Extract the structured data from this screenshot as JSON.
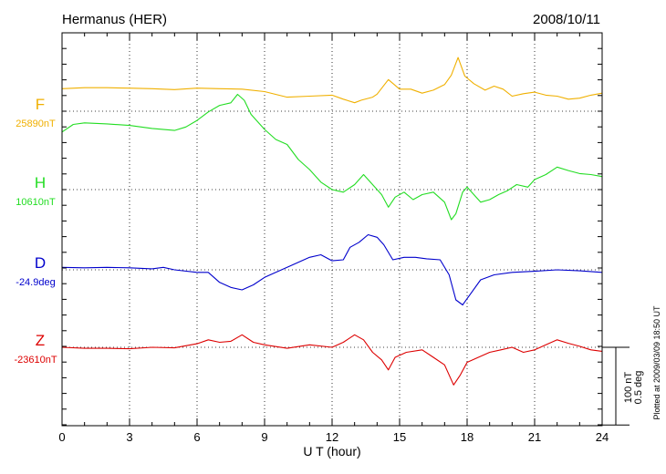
{
  "chart_data": {
    "type": "line",
    "title": "Hermanus (HER)",
    "date": "2008/10/11",
    "xlabel": "U T (hour)",
    "xlim": [
      0,
      24
    ],
    "xticks": [
      "0",
      "3",
      "6",
      "9",
      "12",
      "15",
      "18",
      "21",
      "24"
    ],
    "scale_bar": {
      "nT_label": "100 nT",
      "deg_label": "0.5 deg",
      "nT": 100
    },
    "footer": "Plotted at 2009/03/09 18:50 UT",
    "colors": {
      "F": "#f0b000",
      "H": "#22dd22",
      "D": "#0000cc",
      "Z": "#dd0000"
    },
    "series": [
      {
        "name": "F",
        "baseline_label": "25890nT",
        "color": "#f0b000",
        "points": [
          [
            0,
            45
          ],
          [
            1,
            47
          ],
          [
            2,
            47
          ],
          [
            3,
            46
          ],
          [
            4,
            45
          ],
          [
            5,
            43
          ],
          [
            6,
            46
          ],
          [
            7,
            45
          ],
          [
            8,
            44
          ],
          [
            9,
            39
          ],
          [
            10,
            28
          ],
          [
            11,
            30
          ],
          [
            12,
            32
          ],
          [
            12.5,
            24
          ],
          [
            13,
            17
          ],
          [
            13.3,
            22
          ],
          [
            13.8,
            28
          ],
          [
            14,
            34
          ],
          [
            14.5,
            63
          ],
          [
            15,
            44
          ],
          [
            15.5,
            44
          ],
          [
            16,
            36
          ],
          [
            16.5,
            42
          ],
          [
            17,
            53
          ],
          [
            17.3,
            72
          ],
          [
            17.6,
            107
          ],
          [
            17.9,
            70
          ],
          [
            18.3,
            55
          ],
          [
            18.8,
            42
          ],
          [
            19.2,
            50
          ],
          [
            19.6,
            44
          ],
          [
            20,
            30
          ],
          [
            20.5,
            35
          ],
          [
            21,
            38
          ],
          [
            21.5,
            32
          ],
          [
            22,
            30
          ],
          [
            22.5,
            24
          ],
          [
            23,
            26
          ],
          [
            23.5,
            32
          ],
          [
            24,
            36
          ]
        ]
      },
      {
        "name": "H",
        "baseline_label": "10610nT",
        "color": "#22dd22",
        "points": [
          [
            0,
            115
          ],
          [
            0.5,
            130
          ],
          [
            1,
            133
          ],
          [
            2,
            131
          ],
          [
            3,
            128
          ],
          [
            4,
            122
          ],
          [
            5,
            118
          ],
          [
            5.5,
            125
          ],
          [
            6,
            138
          ],
          [
            6.5,
            155
          ],
          [
            7,
            168
          ],
          [
            7.5,
            173
          ],
          [
            7.8,
            190
          ],
          [
            8.1,
            178
          ],
          [
            8.4,
            150
          ],
          [
            9,
            120
          ],
          [
            9.5,
            100
          ],
          [
            10,
            90
          ],
          [
            10.5,
            60
          ],
          [
            11,
            40
          ],
          [
            11.5,
            15
          ],
          [
            12,
            0
          ],
          [
            12.5,
            -5
          ],
          [
            13,
            10
          ],
          [
            13.4,
            30
          ],
          [
            13.8,
            10
          ],
          [
            14.2,
            -10
          ],
          [
            14.5,
            -35
          ],
          [
            14.8,
            -15
          ],
          [
            15.2,
            -5
          ],
          [
            15.6,
            -20
          ],
          [
            16,
            -10
          ],
          [
            16.5,
            -5
          ],
          [
            17,
            -25
          ],
          [
            17.3,
            -60
          ],
          [
            17.5,
            -48
          ],
          [
            17.8,
            -5
          ],
          [
            18,
            5
          ],
          [
            18.3,
            -10
          ],
          [
            18.6,
            -25
          ],
          [
            19,
            -20
          ],
          [
            19.4,
            -10
          ],
          [
            19.8,
            -2
          ],
          [
            20.2,
            10
          ],
          [
            20.7,
            5
          ],
          [
            21,
            20
          ],
          [
            21.5,
            30
          ],
          [
            22,
            45
          ],
          [
            22.5,
            38
          ],
          [
            23,
            32
          ],
          [
            23.5,
            30
          ],
          [
            24,
            26
          ]
        ]
      },
      {
        "name": "D",
        "baseline_label": "-24.9deg",
        "color": "#0000cc",
        "points": [
          [
            0,
            5
          ],
          [
            1,
            4
          ],
          [
            2,
            5
          ],
          [
            3,
            4
          ],
          [
            4,
            2
          ],
          [
            4.5,
            5
          ],
          [
            5,
            0
          ],
          [
            6,
            -5
          ],
          [
            6.5,
            -5
          ],
          [
            7,
            -25
          ],
          [
            7.5,
            -35
          ],
          [
            8,
            -40
          ],
          [
            8.5,
            -30
          ],
          [
            9,
            -15
          ],
          [
            9.5,
            -5
          ],
          [
            10,
            5
          ],
          [
            10.5,
            15
          ],
          [
            11,
            25
          ],
          [
            11.5,
            30
          ],
          [
            12,
            18
          ],
          [
            12.5,
            20
          ],
          [
            12.8,
            45
          ],
          [
            13.2,
            55
          ],
          [
            13.6,
            70
          ],
          [
            14,
            65
          ],
          [
            14.3,
            50
          ],
          [
            14.7,
            20
          ],
          [
            15.2,
            25
          ],
          [
            15.7,
            25
          ],
          [
            16.2,
            22
          ],
          [
            16.8,
            20
          ],
          [
            17.2,
            -10
          ],
          [
            17.5,
            -60
          ],
          [
            17.8,
            -70
          ],
          [
            18.2,
            -45
          ],
          [
            18.6,
            -20
          ],
          [
            19.2,
            -10
          ],
          [
            20,
            -5
          ],
          [
            21,
            -3
          ],
          [
            22,
            0
          ],
          [
            23,
            -2
          ],
          [
            24,
            -5
          ]
        ]
      },
      {
        "name": "Z",
        "baseline_label": "-23610nT",
        "color": "#dd0000",
        "points": [
          [
            0,
            0
          ],
          [
            1,
            -2
          ],
          [
            2,
            -2
          ],
          [
            3,
            -3
          ],
          [
            4,
            0
          ],
          [
            5,
            -1
          ],
          [
            6,
            7
          ],
          [
            6.5,
            15
          ],
          [
            7,
            10
          ],
          [
            7.5,
            12
          ],
          [
            8,
            25
          ],
          [
            8.5,
            10
          ],
          [
            9,
            5
          ],
          [
            10,
            -2
          ],
          [
            11,
            5
          ],
          [
            12,
            0
          ],
          [
            12.5,
            10
          ],
          [
            13,
            25
          ],
          [
            13.4,
            15
          ],
          [
            13.8,
            -10
          ],
          [
            14.2,
            -25
          ],
          [
            14.5,
            -45
          ],
          [
            14.8,
            -20
          ],
          [
            15.3,
            -10
          ],
          [
            16,
            -5
          ],
          [
            16.5,
            -20
          ],
          [
            17,
            -35
          ],
          [
            17.4,
            -75
          ],
          [
            17.7,
            -55
          ],
          [
            18,
            -30
          ],
          [
            18.5,
            -20
          ],
          [
            19,
            -10
          ],
          [
            19.5,
            -5
          ],
          [
            20,
            0
          ],
          [
            20.5,
            -10
          ],
          [
            21,
            -5
          ],
          [
            21.5,
            5
          ],
          [
            22,
            15
          ],
          [
            22.5,
            8
          ],
          [
            23,
            2
          ],
          [
            23.5,
            -5
          ],
          [
            24,
            -8
          ]
        ]
      }
    ]
  }
}
